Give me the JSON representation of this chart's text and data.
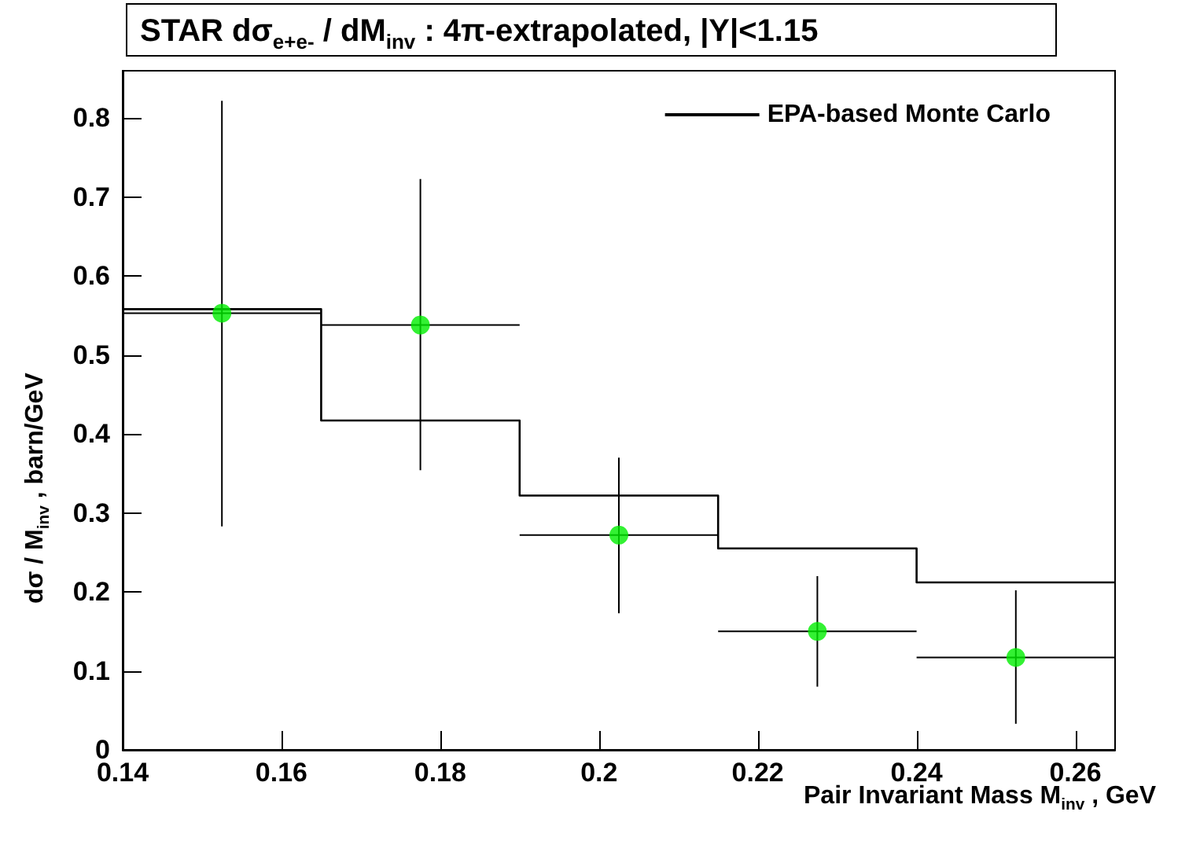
{
  "chart_data": {
    "type": "step",
    "title": "STAR dσ$_{e+e-}$ / dM$_{inv}$ : 4π-extrapolated, |Y|<1.15",
    "xlabel": "Pair Invariant Mass M$_{inv}$ , GeV",
    "ylabel": "dσ / M$_{inv}$ , barn/GeV",
    "series": [
      {
        "name": "EPA-based Monte Carlo",
        "color": "#000000",
        "x": [
          0.14,
          0.165,
          0.19,
          0.215,
          0.24,
          0.265
        ],
        "values": [
          0.558,
          0.417,
          0.322,
          0.255,
          0.212,
          0.212
        ]
      },
      {
        "type": "scatter",
        "color": "#00ee00",
        "marker": "circle",
        "x": [
          0.1525,
          0.1775,
          0.2025,
          0.2275,
          0.2525
        ],
        "values": [
          0.553,
          0.538,
          0.272,
          0.15,
          0.117
        ],
        "errors": [
          [
            0.283,
            0.822
          ],
          [
            0.354,
            0.723
          ],
          [
            0.173,
            0.37
          ],
          [
            0.08,
            0.22
          ],
          [
            0.033,
            0.202
          ]
        ],
        "xerrors": [
          0.0125,
          0.0125,
          0.0125,
          0.0125,
          0.0125
        ]
      }
    ],
    "xlim": [
      0.14,
      0.265
    ],
    "xticks": [
      0.14,
      0.16,
      0.18,
      0.2,
      0.22,
      0.24,
      0.26
    ],
    "ylim": [
      0,
      0.86
    ],
    "yticks": [
      0,
      0.1,
      0.2,
      0.3,
      0.4,
      0.5,
      0.6,
      0.7,
      0.8
    ],
    "grid": false,
    "legend": "top right"
  }
}
